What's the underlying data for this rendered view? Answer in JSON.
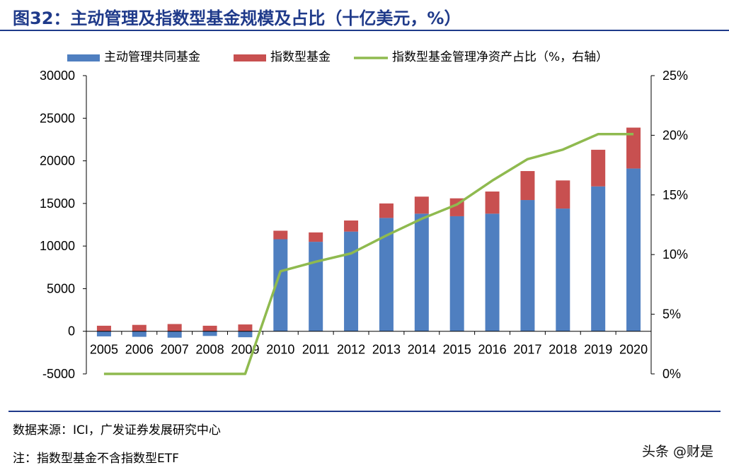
{
  "title": "图32：主动管理及指数型基金规模及占比（十亿美元，%）",
  "source_note": "数据来源：ICI，广发证券发展研究中心",
  "footnote": "注：指数型基金不含指数型ETF",
  "watermark": "头条 @财是",
  "colors": {
    "active": "#4f7fc0",
    "index": "#c85050",
    "share_line": "#8fba4f",
    "title": "#1f3a8a"
  },
  "chart_data": {
    "type": "bar",
    "stacked": true,
    "categories": [
      "2005",
      "2006",
      "2007",
      "2008",
      "2009",
      "2010",
      "2011",
      "2012",
      "2013",
      "2014",
      "2015",
      "2016",
      "2017",
      "2018",
      "2019",
      "2020"
    ],
    "series": [
      {
        "name": "主动管理共同基金",
        "axis": "left",
        "values": [
          -600,
          -650,
          -750,
          -550,
          -700,
          10800,
          10500,
          11700,
          13300,
          13800,
          13500,
          13800,
          15400,
          14400,
          17000,
          19100
        ]
      },
      {
        "name": "指数型基金",
        "axis": "left",
        "values": [
          650,
          750,
          850,
          650,
          800,
          1000,
          1100,
          1300,
          1700,
          2000,
          2100,
          2600,
          3400,
          3300,
          4300,
          4800
        ]
      }
    ],
    "line_series": {
      "name": "指数型基金管理净资产占比（%，右轴）",
      "axis": "right",
      "type": "line",
      "values": [
        0,
        0,
        0,
        0,
        0,
        8.6,
        9.4,
        10.1,
        11.6,
        13.0,
        14.2,
        16.2,
        18.0,
        18.8,
        20.1,
        20.1
      ]
    },
    "y_left": {
      "min": -5000,
      "max": 30000,
      "ticks": [
        "-5000",
        "0",
        "5000",
        "10000",
        "15000",
        "20000",
        "25000",
        "30000"
      ]
    },
    "y_right": {
      "min": 0,
      "max": 25,
      "ticks": [
        "0%",
        "5%",
        "10%",
        "15%",
        "20%",
        "25%"
      ]
    },
    "legend_position": "top",
    "grid": false
  }
}
